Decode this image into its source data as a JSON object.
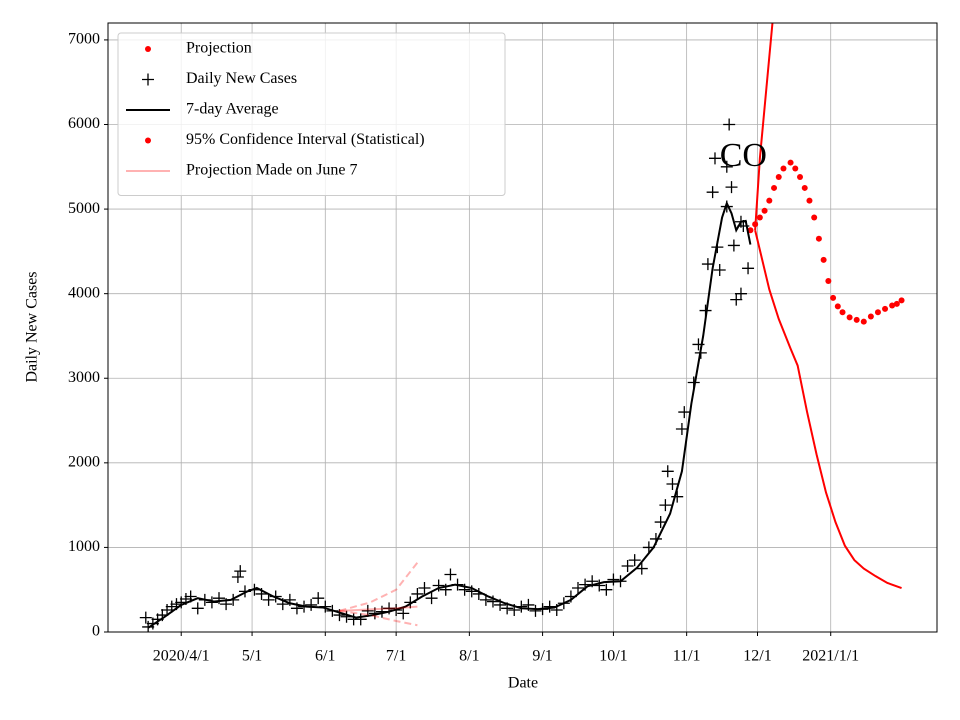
{
  "chart_data": {
    "type": "line",
    "xlabel": "Date",
    "ylabel": "Daily New Cases",
    "xlim": [
      "2020-03-01",
      "2021-02-15"
    ],
    "ylim": [
      0,
      7200
    ],
    "xticks": [
      {
        "value": "2020-04-01",
        "label": "2020/4/1"
      },
      {
        "value": "2020-05-01",
        "label": "5/1"
      },
      {
        "value": "2020-06-01",
        "label": "6/1"
      },
      {
        "value": "2020-07-01",
        "label": "7/1"
      },
      {
        "value": "2020-08-01",
        "label": "8/1"
      },
      {
        "value": "2020-09-01",
        "label": "9/1"
      },
      {
        "value": "2020-10-01",
        "label": "10/1"
      },
      {
        "value": "2020-11-01",
        "label": "11/1"
      },
      {
        "value": "2020-12-01",
        "label": "12/1"
      },
      {
        "value": "2021-01-01",
        "label": "2021/1/1"
      }
    ],
    "yticks": [
      0,
      1000,
      2000,
      3000,
      4000,
      5000,
      6000,
      7000
    ],
    "grid": true,
    "legend_loc": "upper left",
    "annotations": [
      {
        "text": "CO",
        "x": "2020-11-25",
        "y": 5600
      }
    ],
    "series": [
      {
        "name": "Projection",
        "color": "#ff0000",
        "marker": "o",
        "linestyle": null,
        "alpha": 1,
        "x": [
          "2020-11-28",
          "2020-11-30",
          "2020-12-02",
          "2020-12-04",
          "2020-12-06",
          "2020-12-08",
          "2020-12-10",
          "2020-12-12",
          "2020-12-15",
          "2020-12-17",
          "2020-12-19",
          "2020-12-21",
          "2020-12-23",
          "2020-12-25",
          "2020-12-27",
          "2020-12-29",
          "2020-12-31",
          "2021-01-02",
          "2021-01-04",
          "2021-01-06",
          "2021-01-09",
          "2021-01-12",
          "2021-01-15",
          "2021-01-18",
          "2021-01-21",
          "2021-01-24",
          "2021-01-27",
          "2021-01-29",
          "2021-01-31"
        ],
        "values": [
          4750,
          4820,
          4900,
          4980,
          5100,
          5250,
          5380,
          5480,
          5550,
          5480,
          5380,
          5250,
          5100,
          4900,
          4650,
          4400,
          4150,
          3950,
          3850,
          3780,
          3720,
          3690,
          3670,
          3730,
          3780,
          3820,
          3860,
          3880,
          3920
        ]
      },
      {
        "name": "Daily New Cases",
        "color": "#000000",
        "marker": "+",
        "linestyle": null,
        "alpha": 1,
        "x": [
          "2020-03-17",
          "2020-03-18",
          "2020-03-20",
          "2020-03-22",
          "2020-03-24",
          "2020-03-26",
          "2020-03-28",
          "2020-03-30",
          "2020-04-01",
          "2020-04-03",
          "2020-04-05",
          "2020-04-08",
          "2020-04-11",
          "2020-04-14",
          "2020-04-17",
          "2020-04-20",
          "2020-04-23",
          "2020-04-25",
          "2020-04-26",
          "2020-04-28",
          "2020-05-02",
          "2020-05-05",
          "2020-05-08",
          "2020-05-11",
          "2020-05-14",
          "2020-05-17",
          "2020-05-20",
          "2020-05-23",
          "2020-05-26",
          "2020-05-29",
          "2020-06-01",
          "2020-06-04",
          "2020-06-07",
          "2020-06-10",
          "2020-06-13",
          "2020-06-16",
          "2020-06-19",
          "2020-06-22",
          "2020-06-25",
          "2020-06-28",
          "2020-07-01",
          "2020-07-04",
          "2020-07-07",
          "2020-07-10",
          "2020-07-13",
          "2020-07-16",
          "2020-07-19",
          "2020-07-22",
          "2020-07-24",
          "2020-07-27",
          "2020-07-30",
          "2020-08-02",
          "2020-08-05",
          "2020-08-08",
          "2020-08-11",
          "2020-08-14",
          "2020-08-17",
          "2020-08-20",
          "2020-08-23",
          "2020-08-26",
          "2020-08-29",
          "2020-09-01",
          "2020-09-04",
          "2020-09-07",
          "2020-09-10",
          "2020-09-13",
          "2020-09-16",
          "2020-09-19",
          "2020-09-22",
          "2020-09-25",
          "2020-09-28",
          "2020-10-01",
          "2020-10-04",
          "2020-10-07",
          "2020-10-10",
          "2020-10-13",
          "2020-10-16",
          "2020-10-19",
          "2020-10-21",
          "2020-10-23",
          "2020-10-24",
          "2020-10-26",
          "2020-10-28",
          "2020-10-30",
          "2020-10-31",
          "2020-11-04",
          "2020-11-06",
          "2020-11-07",
          "2020-11-09",
          "2020-11-10",
          "2020-11-12",
          "2020-11-13",
          "2020-11-14",
          "2020-11-15",
          "2020-11-18",
          "2020-11-18",
          "2020-11-19",
          "2020-11-20",
          "2020-11-21",
          "2020-11-22",
          "2020-11-24",
          "2020-11-24",
          "2020-11-25",
          "2020-11-27"
        ],
        "values": [
          170,
          60,
          100,
          150,
          200,
          260,
          300,
          330,
          350,
          390,
          420,
          280,
          380,
          350,
          400,
          330,
          380,
          650,
          720,
          480,
          500,
          450,
          380,
          420,
          330,
          380,
          280,
          300,
          320,
          400,
          300,
          250,
          200,
          180,
          150,
          150,
          250,
          220,
          240,
          280,
          260,
          220,
          350,
          450,
          520,
          400,
          550,
          500,
          680,
          560,
          500,
          480,
          450,
          380,
          360,
          320,
          280,
          260,
          300,
          320,
          250,
          270,
          300,
          260,
          340,
          420,
          520,
          560,
          600,
          550,
          500,
          620,
          600,
          780,
          850,
          750,
          1000,
          1100,
          1300,
          1500,
          1900,
          1750,
          1600,
          2400,
          2600,
          2950,
          3400,
          3300,
          3800,
          4350,
          5200,
          5600,
          4550,
          4280,
          5030,
          5500,
          6000,
          5260,
          4570,
          3930,
          4000,
          4850,
          4800,
          4300
        ]
      },
      {
        "name": "7-day Average",
        "color": "#000000",
        "marker": null,
        "linestyle": "-",
        "alpha": 1,
        "x": [
          "2020-03-18",
          "2020-03-25",
          "2020-04-01",
          "2020-04-08",
          "2020-04-15",
          "2020-04-22",
          "2020-04-29",
          "2020-05-03",
          "2020-05-10",
          "2020-05-17",
          "2020-05-24",
          "2020-05-31",
          "2020-06-07",
          "2020-06-14",
          "2020-06-21",
          "2020-06-28",
          "2020-07-05",
          "2020-07-12",
          "2020-07-19",
          "2020-07-26",
          "2020-08-02",
          "2020-08-09",
          "2020-08-16",
          "2020-08-23",
          "2020-08-30",
          "2020-09-06",
          "2020-09-13",
          "2020-09-20",
          "2020-09-27",
          "2020-10-04",
          "2020-10-11",
          "2020-10-18",
          "2020-10-25",
          "2020-10-30",
          "2020-11-03",
          "2020-11-08",
          "2020-11-12",
          "2020-11-16",
          "2020-11-18",
          "2020-11-20",
          "2020-11-22",
          "2020-11-24",
          "2020-11-26",
          "2020-11-28"
        ],
        "values": [
          50,
          180,
          320,
          400,
          360,
          380,
          480,
          520,
          420,
          340,
          300,
          290,
          230,
          170,
          200,
          240,
          300,
          420,
          520,
          560,
          520,
          420,
          340,
          280,
          270,
          290,
          380,
          540,
          590,
          600,
          760,
          1000,
          1400,
          1900,
          2700,
          3500,
          4300,
          4900,
          5070,
          4950,
          4750,
          4850,
          4860,
          4580
        ]
      },
      {
        "name": "95% Confidence Interval (Statistical)",
        "color": "#ff0000",
        "marker": null,
        "linestyle": "-",
        "alpha": 1,
        "legend_marker": "o",
        "x": [
          "2020-11-30",
          "2020-12-02",
          "2020-12-04",
          "2020-12-06",
          "2020-12-08"
        ],
        "values": [
          4750,
          5600,
          6200,
          6800,
          7400
        ]
      },
      {
        "color": "#ff0000",
        "marker": null,
        "linestyle": "-",
        "alpha": 1,
        "x": [
          "2020-11-30",
          "2020-12-03",
          "2020-12-06",
          "2020-12-10",
          "2020-12-15",
          "2020-12-18",
          "2020-12-22",
          "2020-12-26",
          "2020-12-30",
          "2021-01-03",
          "2021-01-07",
          "2021-01-11",
          "2021-01-15",
          "2021-01-20",
          "2021-01-25",
          "2021-01-31"
        ],
        "values": [
          4750,
          4400,
          4050,
          3700,
          3350,
          3150,
          2600,
          2100,
          1650,
          1300,
          1020,
          850,
          750,
          660,
          580,
          520
        ]
      },
      {
        "name": "Projection Made on June 7",
        "color": "#ff0000",
        "marker": null,
        "linestyle": "-",
        "alpha": 0.3,
        "x": [
          "2020-06-07",
          "2020-06-15",
          "2020-06-22",
          "2020-06-30",
          "2020-07-10"
        ],
        "values": [
          250,
          260,
          270,
          280,
          300
        ]
      },
      {
        "color": "#ff0000",
        "marker": null,
        "linestyle": "--",
        "alpha": 0.3,
        "x": [
          "2020-06-07",
          "2020-06-20",
          "2020-07-01",
          "2020-07-10"
        ],
        "values": [
          250,
          350,
          500,
          820
        ]
      },
      {
        "color": "#ff0000",
        "marker": null,
        "linestyle": "--",
        "alpha": 0.3,
        "x": [
          "2020-06-07",
          "2020-06-20",
          "2020-07-01",
          "2020-07-10"
        ],
        "values": [
          250,
          200,
          130,
          80
        ]
      }
    ]
  }
}
